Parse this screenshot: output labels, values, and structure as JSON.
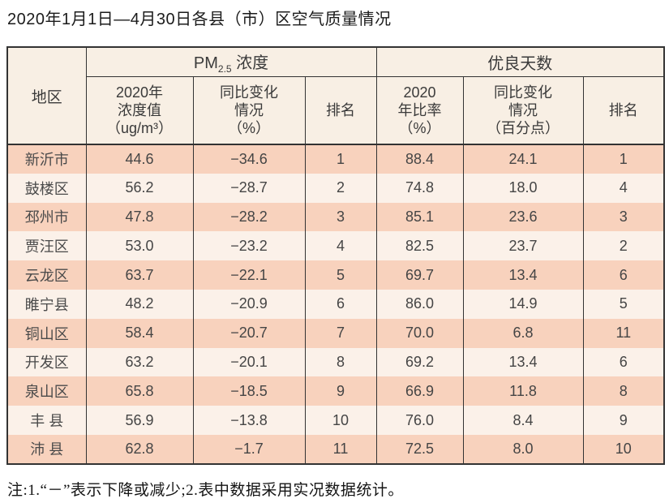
{
  "page": {
    "title": "2020年1月1日—4月30日各县（市）区空气质量情况",
    "note": "注:1.“－”表示下降或减少;2.表中数据采用实况数据统计。"
  },
  "table": {
    "corner_header": "地区",
    "group1": {
      "prefix": "PM",
      "sub": "2.5",
      "suffix": " 浓度"
    },
    "group2": "优良天数",
    "subheaders": {
      "pm_value": "2020年\n浓度值\n（ug/m³）",
      "pm_change": "同比变化\n情况\n（%）",
      "pm_rank": "排名",
      "days_ratio": "2020\n年比率\n（%）",
      "days_change": "同比变化\n情况\n（百分点）",
      "days_rank": "排名"
    },
    "rows": [
      {
        "region": "新沂市",
        "pm_value": "44.6",
        "pm_change": "−34.6",
        "pm_rank": "1",
        "days_ratio": "88.4",
        "days_change": "24.1",
        "days_rank": "1"
      },
      {
        "region": "鼓楼区",
        "pm_value": "56.2",
        "pm_change": "−28.7",
        "pm_rank": "2",
        "days_ratio": "74.8",
        "days_change": "18.0",
        "days_rank": "4"
      },
      {
        "region": "邳州市",
        "pm_value": "47.8",
        "pm_change": "−28.2",
        "pm_rank": "3",
        "days_ratio": "85.1",
        "days_change": "23.6",
        "days_rank": "3"
      },
      {
        "region": "贾汪区",
        "pm_value": "53.0",
        "pm_change": "−23.2",
        "pm_rank": "4",
        "days_ratio": "82.5",
        "days_change": "23.7",
        "days_rank": "2"
      },
      {
        "region": "云龙区",
        "pm_value": "63.7",
        "pm_change": "−22.1",
        "pm_rank": "5",
        "days_ratio": "69.7",
        "days_change": "13.4",
        "days_rank": "6"
      },
      {
        "region": "睢宁县",
        "pm_value": "48.2",
        "pm_change": "−20.9",
        "pm_rank": "6",
        "days_ratio": "86.0",
        "days_change": "14.9",
        "days_rank": "5"
      },
      {
        "region": "铜山区",
        "pm_value": "58.4",
        "pm_change": "−20.7",
        "pm_rank": "7",
        "days_ratio": "70.0",
        "days_change": "6.8",
        "days_rank": "11"
      },
      {
        "region": "开发区",
        "pm_value": "63.2",
        "pm_change": "−20.1",
        "pm_rank": "8",
        "days_ratio": "69.2",
        "days_change": "13.4",
        "days_rank": "6"
      },
      {
        "region": "泉山区",
        "pm_value": "65.8",
        "pm_change": "−18.5",
        "pm_rank": "9",
        "days_ratio": "66.9",
        "days_change": "11.8",
        "days_rank": "8"
      },
      {
        "region": "丰 县",
        "pm_value": "56.9",
        "pm_change": "−13.8",
        "pm_rank": "10",
        "days_ratio": "76.0",
        "days_change": "8.4",
        "days_rank": "9"
      },
      {
        "region": "沛 县",
        "pm_value": "62.8",
        "pm_change": "−1.7",
        "pm_rank": "11",
        "days_ratio": "72.5",
        "days_change": "8.0",
        "days_rank": "10"
      }
    ]
  },
  "colors": {
    "row_band_peach": "#f8d2bd",
    "row_band_light": "#fbf1e9",
    "header_cream": "#f8efe4",
    "border": "#333333",
    "body_text": "#454545",
    "title_text": "#1b1b1b"
  }
}
